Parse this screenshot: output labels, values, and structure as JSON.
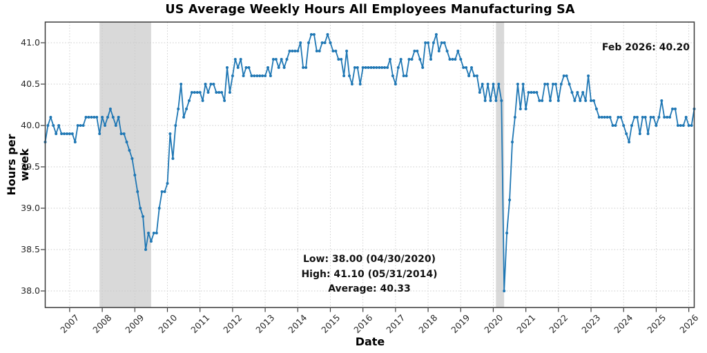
{
  "chart_data": {
    "type": "line",
    "title": "US Average Weekly Hours All Employees Manufacturing SA",
    "xlabel": "Date",
    "ylabel": "Hours per week",
    "series_name": "US Average Weekly Hours All Employees Manufacturing SA",
    "frequency": "monthly",
    "start_year": 2006,
    "start_month": 3,
    "end_label": "Feb 2026",
    "values": [
      39.8,
      40.0,
      40.1,
      40.0,
      39.9,
      40.0,
      39.9,
      39.9,
      39.9,
      39.9,
      39.9,
      39.8,
      40.0,
      40.0,
      40.0,
      40.1,
      40.1,
      40.1,
      40.1,
      40.1,
      39.9,
      40.1,
      40.0,
      40.1,
      40.2,
      40.1,
      40.0,
      40.1,
      39.9,
      39.9,
      39.8,
      39.7,
      39.6,
      39.4,
      39.2,
      39.0,
      38.9,
      38.5,
      38.7,
      38.6,
      38.7,
      38.7,
      39.0,
      39.2,
      39.2,
      39.3,
      39.9,
      39.6,
      40.0,
      40.2,
      40.5,
      40.1,
      40.2,
      40.3,
      40.4,
      40.4,
      40.4,
      40.4,
      40.3,
      40.5,
      40.4,
      40.5,
      40.5,
      40.4,
      40.4,
      40.4,
      40.3,
      40.7,
      40.4,
      40.6,
      40.8,
      40.7,
      40.8,
      40.6,
      40.7,
      40.7,
      40.6,
      40.6,
      40.6,
      40.6,
      40.6,
      40.6,
      40.7,
      40.6,
      40.8,
      40.8,
      40.7,
      40.8,
      40.7,
      40.8,
      40.9,
      40.9,
      40.9,
      40.9,
      41.0,
      40.7,
      40.7,
      41.0,
      41.1,
      41.1,
      40.9,
      40.9,
      41.0,
      41.0,
      41.1,
      41.0,
      40.9,
      40.9,
      40.8,
      40.8,
      40.6,
      40.9,
      40.6,
      40.5,
      40.7,
      40.7,
      40.5,
      40.7,
      40.7,
      40.7,
      40.7,
      40.7,
      40.7,
      40.7,
      40.7,
      40.7,
      40.7,
      40.8,
      40.6,
      40.5,
      40.7,
      40.8,
      40.6,
      40.6,
      40.8,
      40.8,
      40.9,
      40.9,
      40.8,
      40.7,
      41.0,
      41.0,
      40.8,
      41.0,
      41.1,
      40.9,
      41.0,
      41.0,
      40.9,
      40.8,
      40.8,
      40.8,
      40.9,
      40.8,
      40.7,
      40.7,
      40.6,
      40.7,
      40.6,
      40.6,
      40.4,
      40.5,
      40.3,
      40.5,
      40.3,
      40.5,
      40.3,
      40.5,
      40.3,
      38.0,
      38.7,
      39.1,
      39.8,
      40.1,
      40.5,
      40.2,
      40.5,
      40.2,
      40.4,
      40.4,
      40.4,
      40.4,
      40.3,
      40.3,
      40.5,
      40.5,
      40.3,
      40.5,
      40.5,
      40.3,
      40.5,
      40.6,
      40.6,
      40.5,
      40.4,
      40.3,
      40.4,
      40.3,
      40.4,
      40.3,
      40.6,
      40.3,
      40.3,
      40.2,
      40.1,
      40.1,
      40.1,
      40.1,
      40.1,
      40.0,
      40.0,
      40.1,
      40.1,
      40.0,
      39.9,
      39.8,
      40.0,
      40.1,
      40.1,
      39.9,
      40.1,
      40.1,
      39.9,
      40.1,
      40.1,
      40.0,
      40.1,
      40.3,
      40.1,
      40.1,
      40.1,
      40.2,
      40.2,
      40.0,
      40.0,
      40.0,
      40.1,
      40.0,
      40.0,
      40.2
    ],
    "x_ticks": [
      2007,
      2008,
      2009,
      2010,
      2011,
      2012,
      2013,
      2014,
      2015,
      2016,
      2017,
      2018,
      2019,
      2020,
      2021,
      2022,
      2023,
      2024,
      2025,
      2026
    ],
    "y_ticks": [
      38.0,
      38.5,
      39.0,
      39.5,
      40.0,
      40.5,
      41.0
    ],
    "xlim": [
      2006.25,
      2026.1667
    ],
    "ylim": [
      37.8,
      41.25
    ],
    "grid": true,
    "grid_style": "dotted",
    "legend": "none",
    "line_color": "#1f77b4",
    "marker": "circle",
    "band_color": "#d9d9d9",
    "recession_bands": [
      {
        "start_year": 2007,
        "start_month": 12,
        "end_year": 2009,
        "end_month": 6
      },
      {
        "start_year": 2020,
        "start_month": 2,
        "end_year": 2020,
        "end_month": 4
      }
    ],
    "annotations": {
      "last_point": "Feb 2026: 40.20",
      "low": "Low: 38.00 (04/30/2020)",
      "high": "High: 41.10 (05/31/2014)",
      "average": "Average: 40.33"
    }
  }
}
